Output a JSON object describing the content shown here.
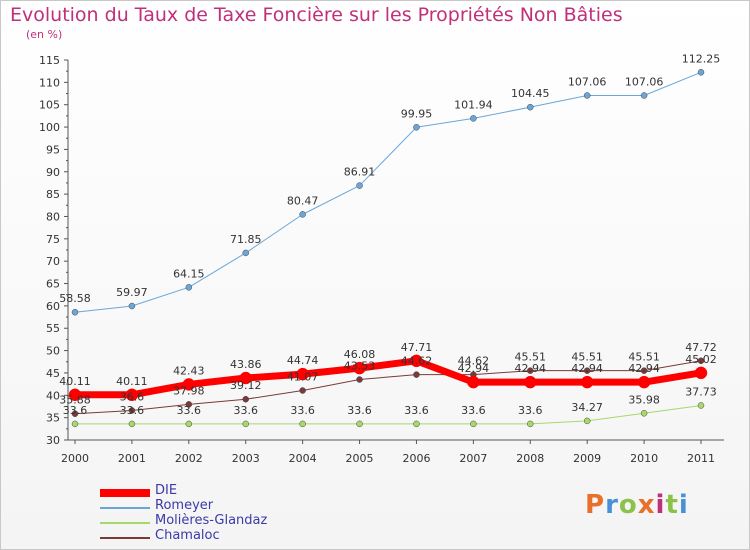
{
  "title": "Evolution du Taux de Taxe Foncière sur les Propriétés Non Bâties",
  "subtitle": "(en %)",
  "logo": {
    "letters": [
      "P",
      "r",
      "o",
      "x",
      "i",
      "t",
      "i"
    ],
    "colors": [
      "#e8702a",
      "#4a90d9",
      "#8bc34a",
      "#e8702a",
      "#c0307a",
      "#8bc34a",
      "#4a90d9"
    ]
  },
  "chart_data": {
    "type": "line",
    "title": "Evolution du Taux de Taxe Foncière sur les Propriétés Non Bâties",
    "ylabel": "(en %)",
    "xlabel": "",
    "x": [
      "2000",
      "2001",
      "2002",
      "2003",
      "2004",
      "2005",
      "2006",
      "2007",
      "2008",
      "2009",
      "2010",
      "2011"
    ],
    "ylim": [
      30,
      115
    ],
    "yticks": [
      "30",
      "35",
      "40",
      "45",
      "50",
      "55",
      "60",
      "65",
      "70",
      "75",
      "80",
      "85",
      "90",
      "95",
      "100",
      "105",
      "110",
      "115"
    ],
    "grid": false,
    "legend_position": "bottom-left",
    "series": [
      {
        "name": "DIE",
        "color": "#ff0000",
        "width": 7,
        "values": [
          40.11,
          40.11,
          42.43,
          43.86,
          44.74,
          46.08,
          47.71,
          42.94,
          42.94,
          42.94,
          42.94,
          45.02
        ],
        "labels": [
          "40.11",
          "40.11",
          "42.43",
          "43.86",
          "44.74",
          "46.08",
          "47.71",
          "42.94",
          "42.94",
          "42.94",
          "42.94",
          "45.02"
        ]
      },
      {
        "name": "Romeyer",
        "color": "#6aa6d8",
        "width": 1,
        "values": [
          58.58,
          59.97,
          64.15,
          71.85,
          80.47,
          86.91,
          99.95,
          101.94,
          104.45,
          107.06,
          107.06,
          112.25
        ],
        "labels": [
          "58.58",
          "59.97",
          "64.15",
          "71.85",
          "80.47",
          "86.91",
          "99.95",
          "101.94",
          "104.45",
          "107.06",
          "107.06",
          "112.25"
        ]
      },
      {
        "name": "Molières-Glandaz",
        "color": "#a6d86a",
        "width": 1,
        "values": [
          33.6,
          33.6,
          33.6,
          33.6,
          33.6,
          33.6,
          33.6,
          33.6,
          33.6,
          34.27,
          35.98,
          37.73
        ],
        "labels": [
          "33.6",
          "33.6",
          "33.6",
          "33.6",
          "33.6",
          "33.6",
          "33.6",
          "33.6",
          "33.6",
          "34.27",
          "35.98",
          "37.73"
        ]
      },
      {
        "name": "Chamaloc",
        "color": "#7a3a3a",
        "width": 1,
        "values": [
          35.88,
          36.6,
          37.98,
          39.12,
          41.07,
          43.53,
          44.62,
          44.62,
          45.51,
          45.51,
          45.51,
          47.72
        ],
        "labels": [
          "35.88",
          "36.6",
          "37.98",
          "39.12",
          "41.07",
          "43.53",
          "44.62",
          "44.62",
          "45.51",
          "45.51",
          "45.51",
          "47.72"
        ]
      }
    ]
  }
}
